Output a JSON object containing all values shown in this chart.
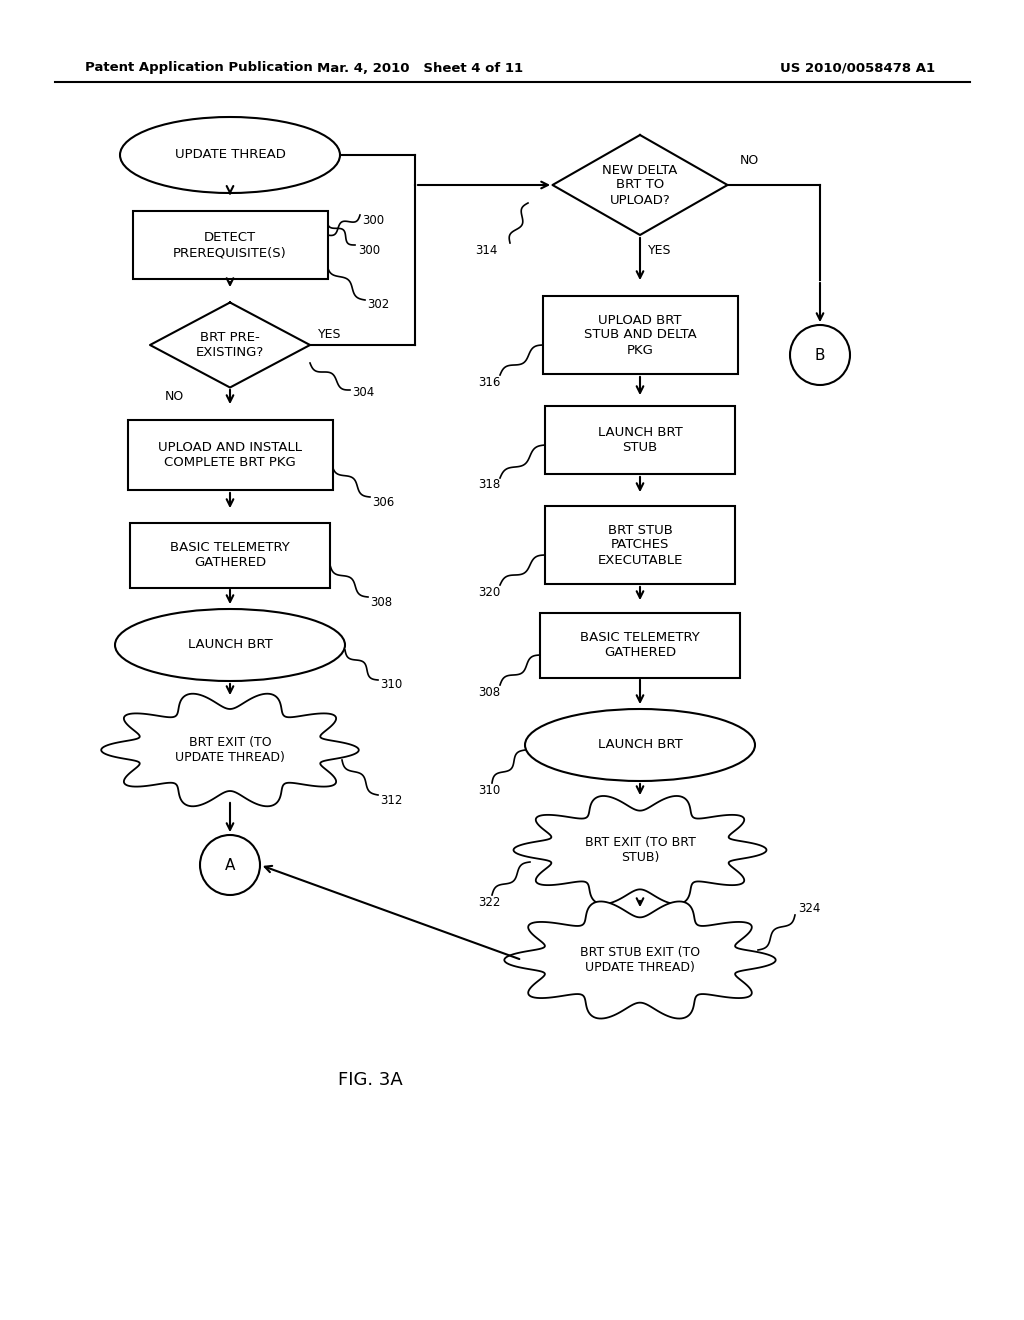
{
  "title_left": "Patent Application Publication",
  "title_mid": "Mar. 4, 2010   Sheet 4 of 11",
  "title_right": "US 2010/0058478 A1",
  "fig_label": "FIG. 3A",
  "bg_color": "#ffffff",
  "line_color": "#000000",
  "text_color": "#000000"
}
